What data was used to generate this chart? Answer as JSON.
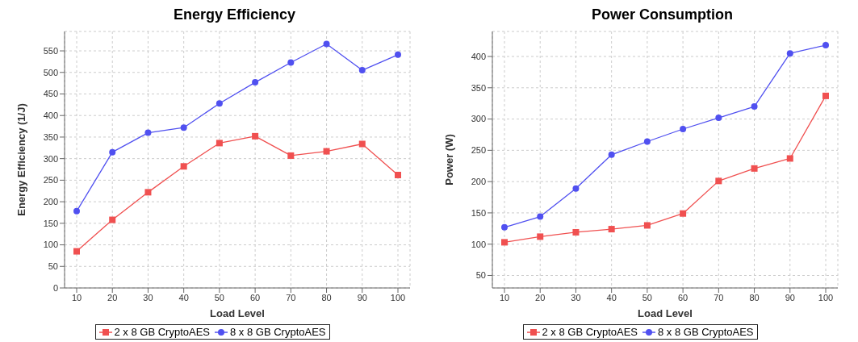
{
  "chart_data": [
    {
      "type": "line",
      "title": "Energy Efficiency",
      "xlabel": "Load Level",
      "ylabel": "Energy Efficiency (1/J)",
      "categories": [
        "10",
        "20",
        "30",
        "40",
        "50",
        "60",
        "70",
        "80",
        "90",
        "100"
      ],
      "series": [
        {
          "name": "2 x 8 GB CryptoAES",
          "color": "#f05050",
          "marker": "square",
          "values": [
            85,
            158,
            222,
            282,
            336,
            352,
            307,
            317,
            334,
            262
          ]
        },
        {
          "name": "8 x 8 GB CryptoAES",
          "color": "#5050f0",
          "marker": "circle",
          "values": [
            178,
            315,
            360,
            372,
            428,
            477,
            523,
            566,
            505,
            541
          ]
        }
      ],
      "ylim": [
        0,
        595
      ],
      "yticks": [
        0,
        50,
        100,
        150,
        200,
        250,
        300,
        350,
        400,
        450,
        500,
        550
      ],
      "grid": true,
      "legend": "bottom",
      "line_style": "solid"
    },
    {
      "type": "line",
      "title": "Power Consumption",
      "xlabel": "Load Level",
      "ylabel": "Power (W)",
      "categories": [
        "10",
        "20",
        "30",
        "40",
        "50",
        "60",
        "70",
        "80",
        "90",
        "100"
      ],
      "series": [
        {
          "name": "2 x 8 GB CryptoAES",
          "color": "#f05050",
          "marker": "square",
          "values": [
            103,
            112,
            119,
            124,
            130,
            149,
            201,
            221,
            237,
            337
          ]
        },
        {
          "name": "8 x 8 GB CryptoAES",
          "color": "#5050f0",
          "marker": "circle",
          "values": [
            127,
            144,
            189,
            243,
            264,
            284,
            302,
            320,
            405,
            418
          ]
        }
      ],
      "ylim": [
        30,
        440
      ],
      "yticks": [
        50,
        100,
        150,
        200,
        250,
        300,
        350,
        400
      ],
      "grid": true,
      "legend": "bottom",
      "line_style": "solid"
    }
  ]
}
